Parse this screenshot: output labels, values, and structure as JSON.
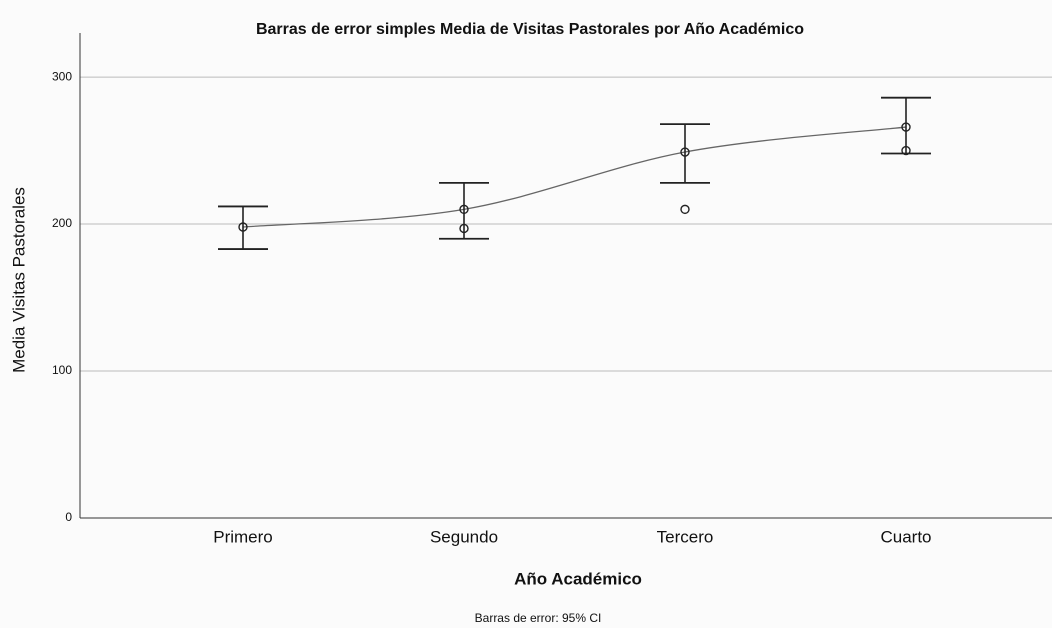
{
  "chart_data": {
    "type": "errorbar",
    "title": "Barras de error simples Media de Visitas Pastorales por Año Académico",
    "x_label": "Año Académico",
    "y_label": "Media Visitas Pastorales",
    "annotation": "Barras de error: 95% CI",
    "categories": [
      "Primero",
      "Segundo",
      "Tercero",
      "Cuarto"
    ],
    "values": [
      198,
      210,
      249,
      266
    ],
    "lower": [
      183,
      190,
      228,
      248
    ],
    "upper": [
      212,
      228,
      268,
      286
    ],
    "points": [
      null,
      197,
      210,
      250
    ],
    "color": "#222222",
    "ylim": [
      0,
      330
    ],
    "yticks": [
      0,
      100,
      200,
      300
    ],
    "grid": true
  }
}
